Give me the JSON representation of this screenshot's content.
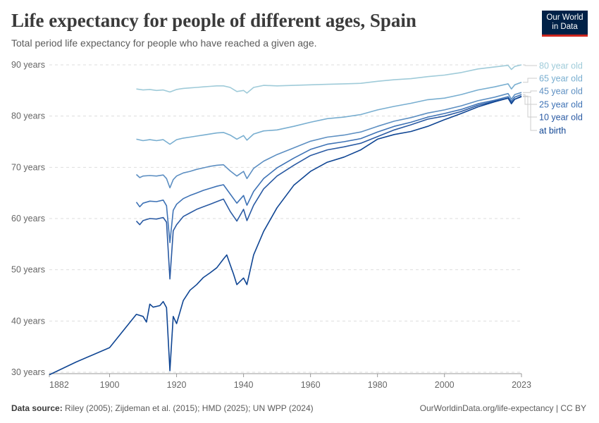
{
  "header": {
    "title": "Life expectancy for people of different ages, Spain",
    "subtitle": "Total period life expectancy for people who have reached a given age.",
    "logo_line1": "Our World",
    "logo_line2": "in Data"
  },
  "footer": {
    "source_label": "Data source:",
    "source_text": " Riley (2005); Zijdeman et al. (2015); HMD (2025); UN WPP (2024)",
    "credit": "OurWorldinData.org/life-expectancy | CC BY"
  },
  "chart_data": {
    "type": "line",
    "title": "Life expectancy for people of different ages, Spain",
    "xlim": [
      1882,
      2023
    ],
    "ylim": [
      30,
      90
    ],
    "x_ticks": [
      1882,
      1900,
      1920,
      1940,
      1960,
      1980,
      2000,
      2023
    ],
    "y_ticks": [
      30,
      40,
      50,
      60,
      70,
      80,
      90
    ],
    "y_tick_labels": [
      "30 years",
      "40 years",
      "50 years",
      "60 years",
      "70 years",
      "80 years",
      "90 years"
    ],
    "grid": "horizontal dashed",
    "legend": "right, line-end labels",
    "series": [
      {
        "name": "80 year old",
        "color": "#9fcbd9",
        "points": [
          [
            1908,
            85.3
          ],
          [
            1910,
            85.1
          ],
          [
            1912,
            85.2
          ],
          [
            1914,
            85.0
          ],
          [
            1916,
            85.1
          ],
          [
            1918,
            84.7
          ],
          [
            1920,
            85.2
          ],
          [
            1922,
            85.4
          ],
          [
            1924,
            85.5
          ],
          [
            1926,
            85.6
          ],
          [
            1928,
            85.7
          ],
          [
            1930,
            85.8
          ],
          [
            1932,
            85.9
          ],
          [
            1934,
            85.9
          ],
          [
            1936,
            85.6
          ],
          [
            1938,
            84.8
          ],
          [
            1940,
            85.0
          ],
          [
            1941,
            84.5
          ],
          [
            1943,
            85.6
          ],
          [
            1946,
            86.0
          ],
          [
            1950,
            85.9
          ],
          [
            1955,
            86.0
          ],
          [
            1960,
            86.1
          ],
          [
            1965,
            86.2
          ],
          [
            1970,
            86.3
          ],
          [
            1975,
            86.4
          ],
          [
            1980,
            86.8
          ],
          [
            1985,
            87.1
          ],
          [
            1990,
            87.3
          ],
          [
            1995,
            87.7
          ],
          [
            2000,
            88.0
          ],
          [
            2005,
            88.5
          ],
          [
            2010,
            89.2
          ],
          [
            2015,
            89.6
          ],
          [
            2019,
            89.9
          ],
          [
            2020,
            89.1
          ],
          [
            2021,
            89.7
          ],
          [
            2023,
            90.0
          ]
        ]
      },
      {
        "name": "65 year old",
        "color": "#78aed0",
        "points": [
          [
            1908,
            75.5
          ],
          [
            1910,
            75.2
          ],
          [
            1912,
            75.4
          ],
          [
            1914,
            75.2
          ],
          [
            1916,
            75.4
          ],
          [
            1918,
            74.5
          ],
          [
            1920,
            75.4
          ],
          [
            1922,
            75.7
          ],
          [
            1924,
            75.9
          ],
          [
            1926,
            76.1
          ],
          [
            1928,
            76.3
          ],
          [
            1930,
            76.5
          ],
          [
            1932,
            76.7
          ],
          [
            1934,
            76.8
          ],
          [
            1936,
            76.3
          ],
          [
            1938,
            75.5
          ],
          [
            1940,
            76.2
          ],
          [
            1941,
            75.3
          ],
          [
            1943,
            76.5
          ],
          [
            1946,
            77.1
          ],
          [
            1950,
            77.3
          ],
          [
            1955,
            78.0
          ],
          [
            1960,
            78.8
          ],
          [
            1965,
            79.5
          ],
          [
            1970,
            79.8
          ],
          [
            1975,
            80.3
          ],
          [
            1980,
            81.2
          ],
          [
            1985,
            81.9
          ],
          [
            1990,
            82.5
          ],
          [
            1995,
            83.2
          ],
          [
            2000,
            83.5
          ],
          [
            2005,
            84.2
          ],
          [
            2010,
            85.1
          ],
          [
            2015,
            85.7
          ],
          [
            2019,
            86.3
          ],
          [
            2020,
            85.3
          ],
          [
            2021,
            86.1
          ],
          [
            2023,
            86.6
          ]
        ]
      },
      {
        "name": "45 year old",
        "color": "#5d8fc2",
        "points": [
          [
            1908,
            68.6
          ],
          [
            1909,
            68.0
          ],
          [
            1910,
            68.3
          ],
          [
            1912,
            68.4
          ],
          [
            1914,
            68.3
          ],
          [
            1916,
            68.5
          ],
          [
            1917,
            67.8
          ],
          [
            1918,
            66.0
          ],
          [
            1919,
            67.6
          ],
          [
            1920,
            68.3
          ],
          [
            1922,
            68.9
          ],
          [
            1924,
            69.2
          ],
          [
            1926,
            69.6
          ],
          [
            1928,
            69.9
          ],
          [
            1930,
            70.2
          ],
          [
            1932,
            70.4
          ],
          [
            1934,
            70.5
          ],
          [
            1936,
            69.3
          ],
          [
            1938,
            68.3
          ],
          [
            1940,
            69.2
          ],
          [
            1941,
            67.8
          ],
          [
            1943,
            69.8
          ],
          [
            1946,
            71.2
          ],
          [
            1950,
            72.5
          ],
          [
            1955,
            73.8
          ],
          [
            1960,
            75.1
          ],
          [
            1965,
            75.9
          ],
          [
            1970,
            76.3
          ],
          [
            1975,
            76.9
          ],
          [
            1980,
            78.0
          ],
          [
            1985,
            79.0
          ],
          [
            1990,
            79.7
          ],
          [
            1995,
            80.6
          ],
          [
            2000,
            81.2
          ],
          [
            2005,
            82.0
          ],
          [
            2010,
            83.0
          ],
          [
            2015,
            83.7
          ],
          [
            2019,
            84.4
          ],
          [
            2020,
            83.3
          ],
          [
            2021,
            84.2
          ],
          [
            2023,
            84.6
          ]
        ]
      },
      {
        "name": "25 year old",
        "color": "#3e72b5",
        "points": [
          [
            1908,
            63.2
          ],
          [
            1909,
            62.3
          ],
          [
            1910,
            63.0
          ],
          [
            1912,
            63.4
          ],
          [
            1914,
            63.3
          ],
          [
            1916,
            63.6
          ],
          [
            1917,
            62.5
          ],
          [
            1918,
            55.3
          ],
          [
            1919,
            61.6
          ],
          [
            1920,
            62.8
          ],
          [
            1922,
            63.9
          ],
          [
            1924,
            64.5
          ],
          [
            1926,
            65.0
          ],
          [
            1928,
            65.5
          ],
          [
            1930,
            65.9
          ],
          [
            1932,
            66.3
          ],
          [
            1934,
            66.6
          ],
          [
            1936,
            64.8
          ],
          [
            1938,
            63.0
          ],
          [
            1940,
            64.5
          ],
          [
            1941,
            62.6
          ],
          [
            1943,
            65.3
          ],
          [
            1946,
            67.8
          ],
          [
            1950,
            69.9
          ],
          [
            1955,
            71.8
          ],
          [
            1960,
            73.5
          ],
          [
            1965,
            74.5
          ],
          [
            1970,
            75.0
          ],
          [
            1975,
            75.6
          ],
          [
            1980,
            76.9
          ],
          [
            1985,
            78.0
          ],
          [
            1990,
            78.8
          ],
          [
            1995,
            79.8
          ],
          [
            2000,
            80.5
          ],
          [
            2005,
            81.3
          ],
          [
            2010,
            82.4
          ],
          [
            2015,
            83.1
          ],
          [
            2019,
            83.8
          ],
          [
            2020,
            82.9
          ],
          [
            2021,
            83.7
          ],
          [
            2023,
            84.2
          ]
        ]
      },
      {
        "name": "10 year old",
        "color": "#2a5aa3",
        "points": [
          [
            1908,
            59.5
          ],
          [
            1909,
            58.8
          ],
          [
            1910,
            59.6
          ],
          [
            1912,
            60.0
          ],
          [
            1914,
            59.9
          ],
          [
            1916,
            60.2
          ],
          [
            1917,
            59.3
          ],
          [
            1918,
            48.2
          ],
          [
            1919,
            57.6
          ],
          [
            1920,
            58.8
          ],
          [
            1922,
            60.4
          ],
          [
            1924,
            61.1
          ],
          [
            1926,
            61.8
          ],
          [
            1928,
            62.3
          ],
          [
            1930,
            62.8
          ],
          [
            1932,
            63.3
          ],
          [
            1934,
            63.8
          ],
          [
            1936,
            61.4
          ],
          [
            1938,
            59.5
          ],
          [
            1940,
            61.8
          ],
          [
            1941,
            59.6
          ],
          [
            1943,
            62.6
          ],
          [
            1946,
            65.8
          ],
          [
            1950,
            68.3
          ],
          [
            1955,
            70.4
          ],
          [
            1960,
            72.3
          ],
          [
            1965,
            73.4
          ],
          [
            1970,
            74.0
          ],
          [
            1975,
            74.7
          ],
          [
            1980,
            76.0
          ],
          [
            1985,
            77.3
          ],
          [
            1990,
            78.3
          ],
          [
            1995,
            79.4
          ],
          [
            2000,
            80.0
          ],
          [
            2005,
            80.9
          ],
          [
            2010,
            82.1
          ],
          [
            2015,
            82.9
          ],
          [
            2019,
            83.5
          ],
          [
            2020,
            82.6
          ],
          [
            2021,
            83.3
          ],
          [
            2023,
            83.9
          ]
        ]
      },
      {
        "name": "at birth",
        "color": "#0f4593",
        "points": [
          [
            1882,
            29.5
          ],
          [
            1890,
            32.0
          ],
          [
            1900,
            34.8
          ],
          [
            1908,
            41.3
          ],
          [
            1910,
            40.9
          ],
          [
            1911,
            39.8
          ],
          [
            1912,
            43.3
          ],
          [
            1913,
            42.7
          ],
          [
            1915,
            43.0
          ],
          [
            1916,
            43.8
          ],
          [
            1917,
            42.6
          ],
          [
            1918,
            30.3
          ],
          [
            1919,
            40.9
          ],
          [
            1920,
            39.5
          ],
          [
            1922,
            44.0
          ],
          [
            1924,
            46.0
          ],
          [
            1926,
            47.1
          ],
          [
            1928,
            48.5
          ],
          [
            1930,
            49.4
          ],
          [
            1932,
            50.4
          ],
          [
            1934,
            52.1
          ],
          [
            1935,
            52.9
          ],
          [
            1936,
            51.0
          ],
          [
            1937,
            49.2
          ],
          [
            1938,
            47.1
          ],
          [
            1940,
            48.4
          ],
          [
            1941,
            47.1
          ],
          [
            1943,
            52.9
          ],
          [
            1946,
            57.5
          ],
          [
            1950,
            62.1
          ],
          [
            1955,
            66.5
          ],
          [
            1960,
            69.2
          ],
          [
            1965,
            71.0
          ],
          [
            1970,
            72.0
          ],
          [
            1975,
            73.4
          ],
          [
            1980,
            75.5
          ],
          [
            1985,
            76.4
          ],
          [
            1990,
            77.0
          ],
          [
            1995,
            78.0
          ],
          [
            2000,
            79.3
          ],
          [
            2005,
            80.5
          ],
          [
            2010,
            81.8
          ],
          [
            2015,
            82.8
          ],
          [
            2019,
            83.5
          ],
          [
            2020,
            82.4
          ],
          [
            2021,
            83.3
          ],
          [
            2023,
            83.8
          ]
        ]
      }
    ]
  }
}
